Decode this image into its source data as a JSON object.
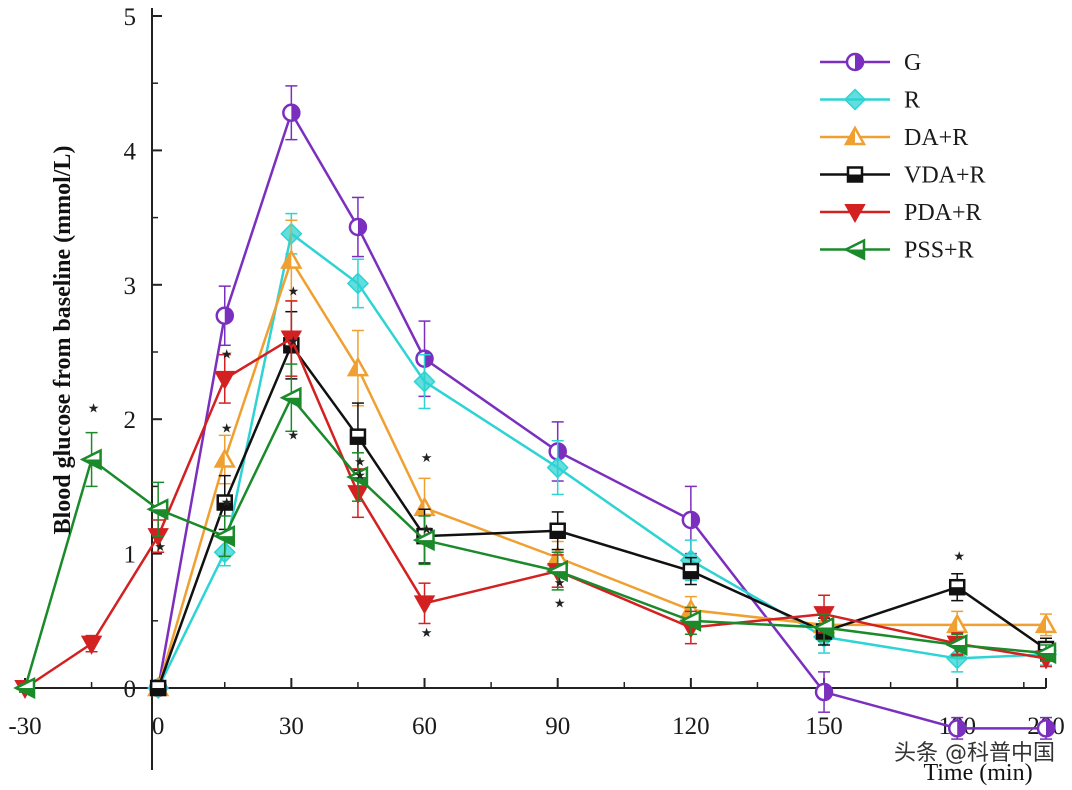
{
  "chart_data": {
    "type": "line",
    "ylabel": "Blood glucose from baseline (mmol/L)",
    "xlabel": "Time (min)",
    "x_ticks": [
      "-30",
      "0",
      "30",
      "60",
      "90",
      "120",
      "150",
      "180",
      "200"
    ],
    "y_ticks": [
      "0",
      "1",
      "2",
      "3",
      "4",
      "5"
    ],
    "xlim": [
      -30,
      200
    ],
    "ylim": [
      0,
      5
    ],
    "legend_position": "top-right",
    "grid": false,
    "series": [
      {
        "name": "G",
        "color": "#7b2fbf",
        "marker": "circle-half",
        "x": [
          0,
          15,
          30,
          45,
          60,
          90,
          120,
          150,
          180,
          200
        ],
        "y": [
          0,
          2.77,
          4.28,
          3.43,
          2.45,
          1.76,
          1.25,
          -0.03,
          -0.3,
          -0.3
        ],
        "err": [
          0.05,
          0.22,
          0.2,
          0.22,
          0.28,
          0.22,
          0.25,
          0.15,
          0.08,
          0.08
        ]
      },
      {
        "name": "R",
        "color": "#2ed3d3",
        "marker": "diamond",
        "x": [
          0,
          15,
          30,
          45,
          60,
          90,
          120,
          150,
          180,
          200
        ],
        "y": [
          0,
          1.01,
          3.38,
          3.01,
          2.28,
          1.64,
          0.95,
          0.38,
          0.22,
          0.25
        ],
        "err": [
          0.05,
          0.1,
          0.15,
          0.18,
          0.2,
          0.2,
          0.15,
          0.12,
          0.1,
          0.08
        ]
      },
      {
        "name": "DA+R",
        "color": "#f0a030",
        "marker": "triangle-up",
        "x": [
          0,
          15,
          30,
          45,
          60,
          90,
          120,
          150,
          180,
          200
        ],
        "y": [
          0,
          1.7,
          3.18,
          2.38,
          1.34,
          0.97,
          0.58,
          0.47,
          0.47,
          0.47
        ],
        "err": [
          0.05,
          0.18,
          0.3,
          0.28,
          0.22,
          0.12,
          0.1,
          0.1,
          0.1,
          0.08
        ]
      },
      {
        "name": "VDA+R",
        "color": "#111111",
        "marker": "square-half",
        "x": [
          0,
          15,
          30,
          45,
          60,
          90,
          120,
          150,
          180,
          200
        ],
        "y": [
          0,
          1.38,
          2.55,
          1.87,
          1.13,
          1.17,
          0.87,
          0.42,
          0.75,
          0.29
        ],
        "err": [
          0.05,
          0.2,
          0.25,
          0.25,
          0.2,
          0.14,
          0.1,
          0.1,
          0.1,
          0.08
        ]
      },
      {
        "name": "PDA+R",
        "color": "#d32020",
        "marker": "triangle-down",
        "x": [
          -30,
          -15,
          0,
          15,
          30,
          45,
          60,
          90,
          120,
          150,
          180,
          200
        ],
        "y": [
          0,
          0.33,
          1.13,
          2.3,
          2.6,
          1.45,
          0.63,
          0.87,
          0.45,
          0.55,
          0.33,
          0.22
        ],
        "err": [
          0.03,
          0.06,
          0.12,
          0.18,
          0.28,
          0.18,
          0.15,
          0.12,
          0.12,
          0.14,
          0.08,
          0.06
        ]
      },
      {
        "name": "PSS+R",
        "color": "#1a8a2a",
        "marker": "triangle-left",
        "x": [
          -30,
          -15,
          0,
          15,
          30,
          45,
          60,
          90,
          120,
          150,
          180,
          200
        ],
        "y": [
          0,
          1.7,
          1.33,
          1.13,
          2.16,
          1.57,
          1.1,
          0.87,
          0.5,
          0.45,
          0.32,
          0.26
        ],
        "err": [
          0.03,
          0.2,
          0.2,
          0.15,
          0.25,
          0.18,
          0.18,
          0.14,
          0.1,
          0.1,
          0.08,
          0.06
        ]
      }
    ]
  },
  "watermark": "头条 @科普中国"
}
